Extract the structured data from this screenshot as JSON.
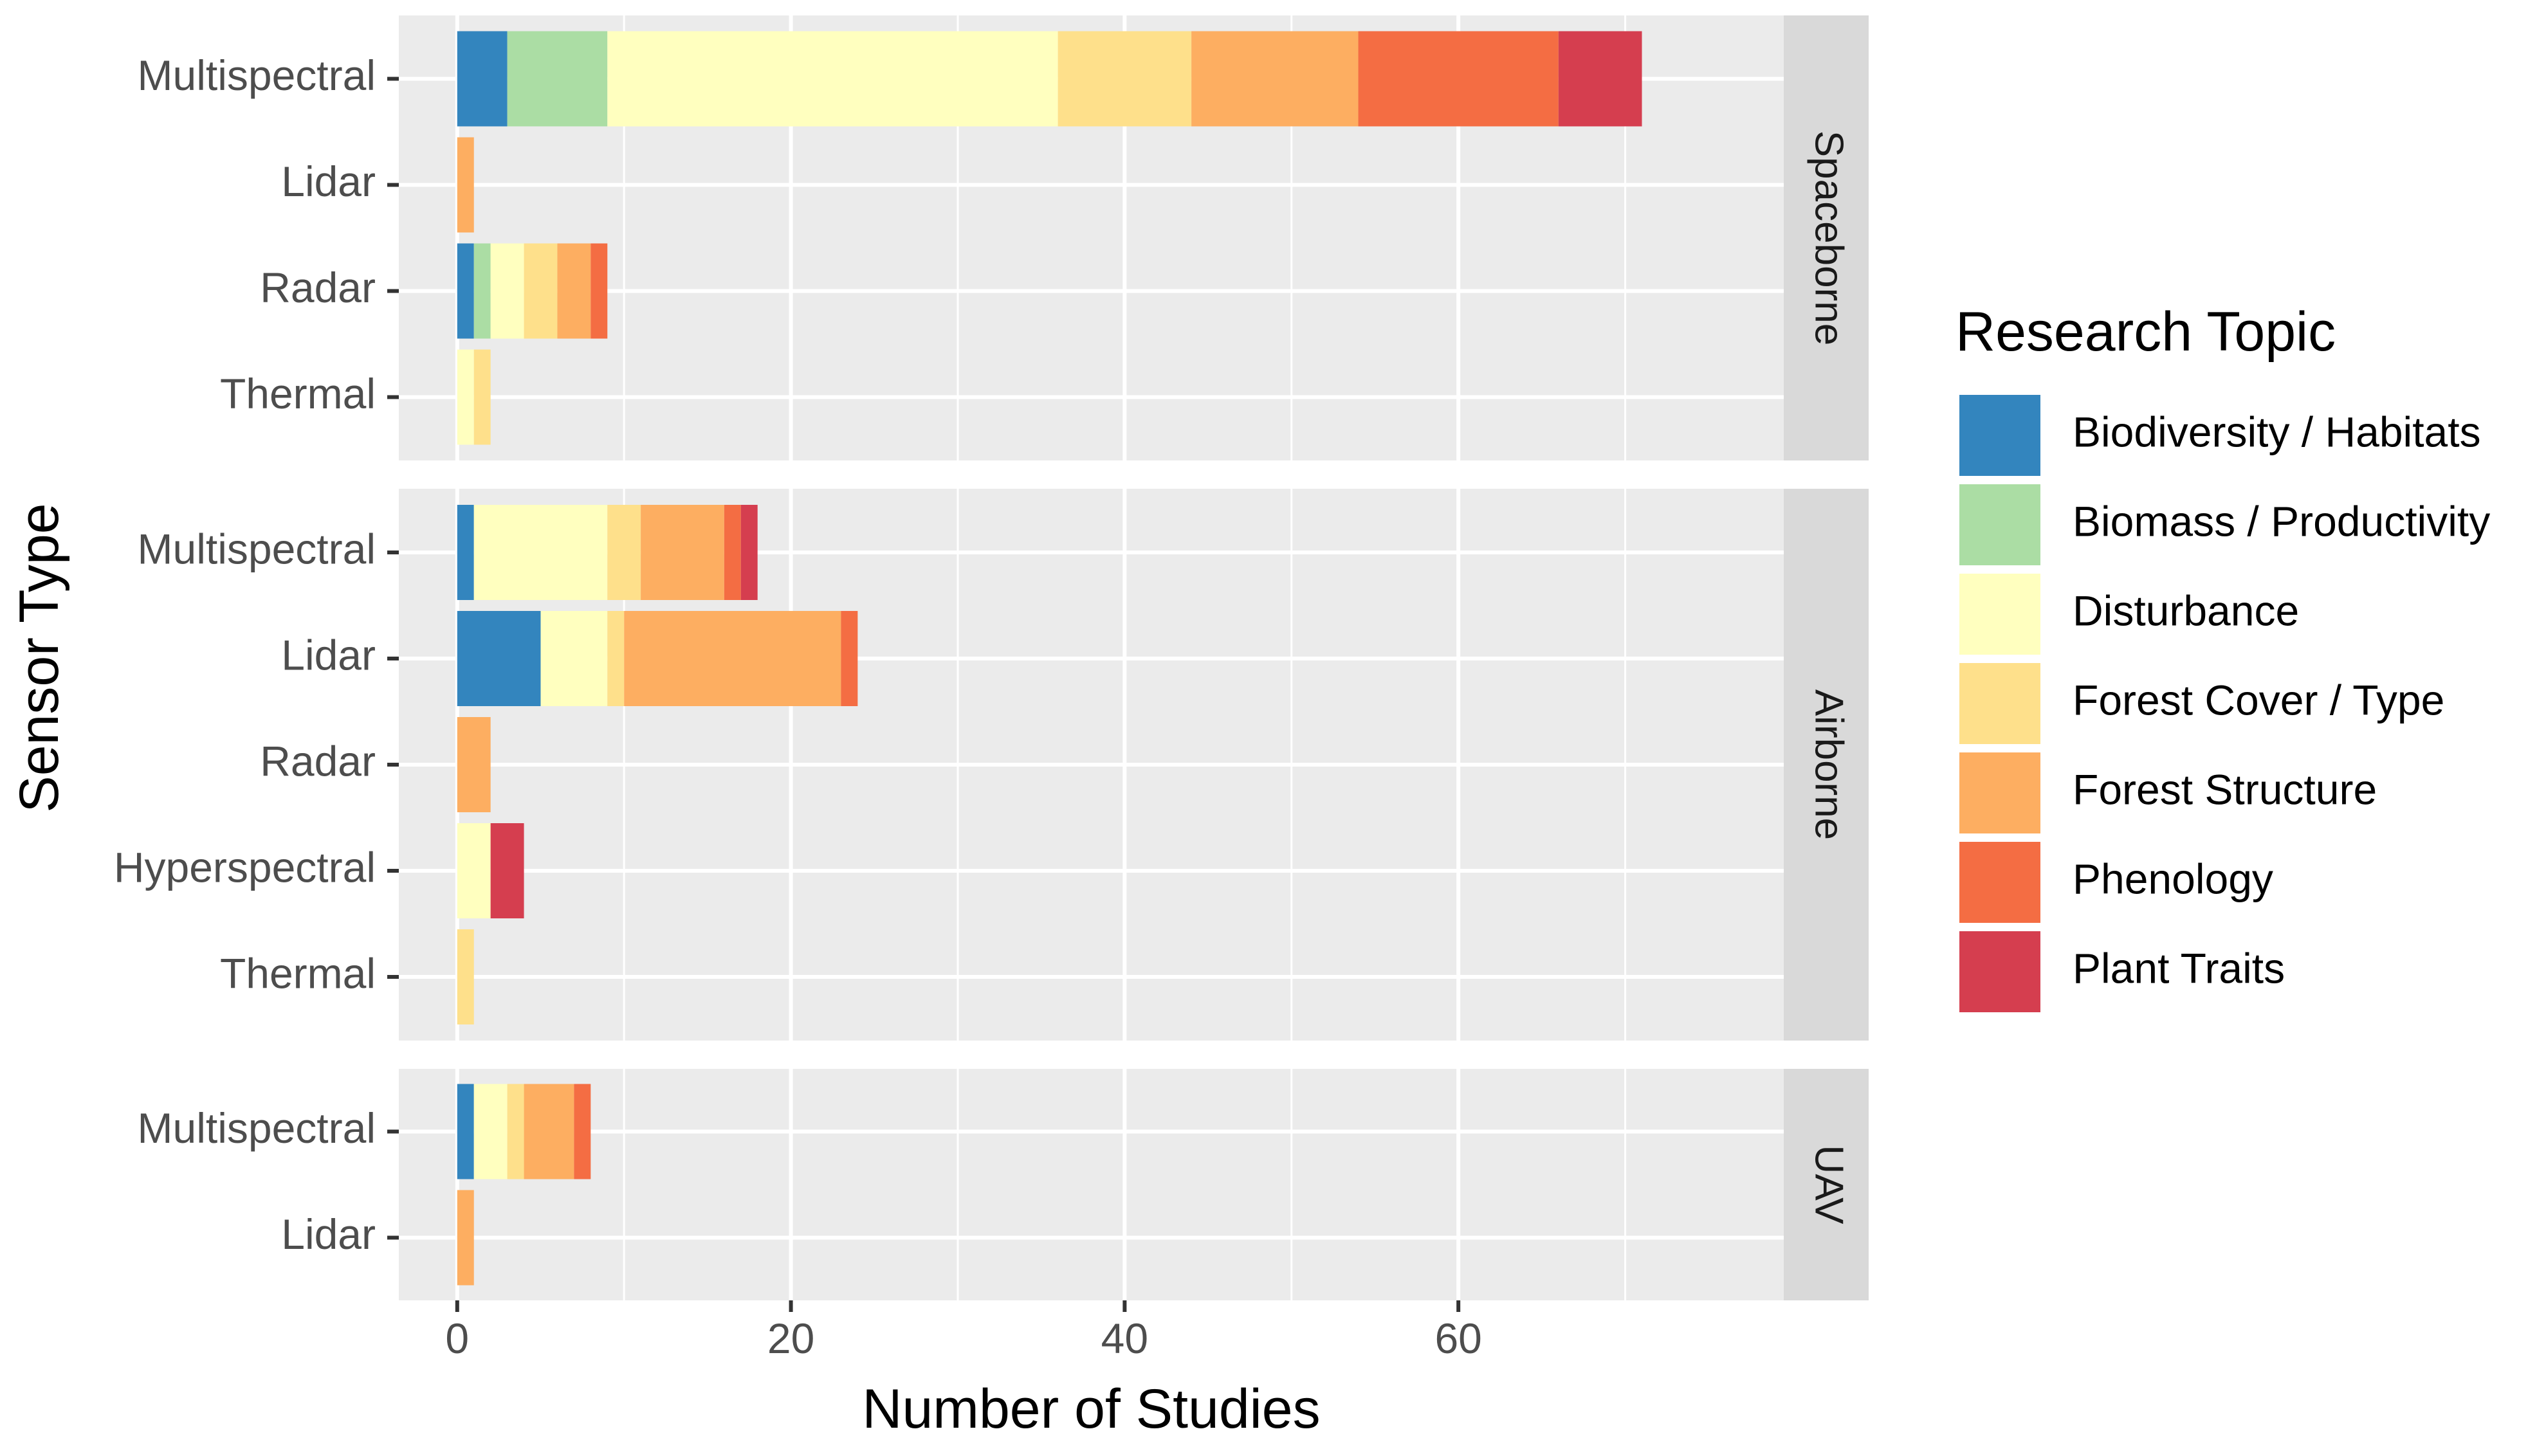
{
  "chart_data": {
    "type": "bar",
    "orientation": "horizontal",
    "stacked": true,
    "title": "",
    "xlabel": "Number of Studies",
    "ylabel": "Sensor Type",
    "xlim": [
      -3.5,
      79.5
    ],
    "xticks": [
      0,
      20,
      40,
      60
    ],
    "grid": true,
    "legend": {
      "title": "Research Topic",
      "position": "right",
      "entries": [
        {
          "name": "Biodiversity / Habitats",
          "color": "#3385BE"
        },
        {
          "name": "Biomass / Productivity",
          "color": "#ABDDA4"
        },
        {
          "name": "Disturbance",
          "color": "#FFFFBF"
        },
        {
          "name": "Forest Cover / Type",
          "color": "#FEE08B"
        },
        {
          "name": "Forest Structure",
          "color": "#FDAE61"
        },
        {
          "name": "Phenology",
          "color": "#F46D43"
        },
        {
          "name": "Plant Traits",
          "color": "#D53E4F"
        }
      ]
    },
    "facets": [
      {
        "label": "Spaceborne",
        "rows": [
          {
            "category": "Multispectral",
            "values": [
              3,
              6,
              27,
              8,
              10,
              12,
              5
            ]
          },
          {
            "category": "Lidar",
            "values": [
              0,
              0,
              0,
              0,
              1,
              0,
              0
            ]
          },
          {
            "category": "Radar",
            "values": [
              1,
              1,
              2,
              2,
              2,
              1,
              0
            ]
          },
          {
            "category": "Thermal",
            "values": [
              0,
              0,
              1,
              1,
              0,
              0,
              0
            ]
          }
        ]
      },
      {
        "label": "Airborne",
        "rows": [
          {
            "category": "Multispectral",
            "values": [
              1,
              0,
              8,
              2,
              5,
              1,
              1
            ]
          },
          {
            "category": "Lidar",
            "values": [
              5,
              0,
              4,
              1,
              13,
              1,
              0
            ]
          },
          {
            "category": "Radar",
            "values": [
              0,
              0,
              0,
              0,
              2,
              0,
              0
            ]
          },
          {
            "category": "Hyperspectral",
            "values": [
              0,
              0,
              2,
              0,
              0,
              0,
              2
            ]
          },
          {
            "category": "Thermal",
            "values": [
              0,
              0,
              0,
              1,
              0,
              0,
              0
            ]
          }
        ]
      },
      {
        "label": "UAV",
        "rows": [
          {
            "category": "Multispectral",
            "values": [
              1,
              0,
              2,
              1,
              3,
              1,
              0
            ]
          },
          {
            "category": "Lidar",
            "values": [
              0,
              0,
              0,
              0,
              1,
              0,
              0
            ]
          }
        ]
      }
    ]
  }
}
